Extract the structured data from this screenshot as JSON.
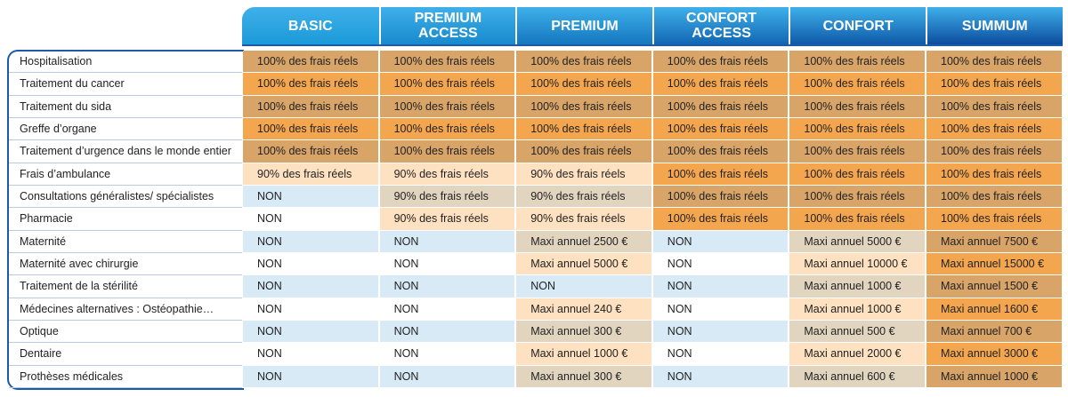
{
  "table": {
    "columns": [
      "BASIC",
      "PREMIUM ACCESS",
      "PREMIUM",
      "CONFORT ACCESS",
      "CONFORT",
      "SUMMUM"
    ],
    "rows": [
      {
        "label": "Hospitalisation",
        "cells": [
          "100% des frais réels",
          "100% des frais réels",
          "100% des frais réels",
          "100% des frais réels",
          "100% des frais réels",
          "100% des frais réels"
        ]
      },
      {
        "label": "Traitement du cancer",
        "cells": [
          "100% des frais réels",
          "100% des frais réels",
          "100% des frais réels",
          "100% des frais réels",
          "100% des frais réels",
          "100% des frais réels"
        ]
      },
      {
        "label": "Traitement du sida",
        "cells": [
          "100% des frais réels",
          "100% des frais réels",
          "100% des frais réels",
          "100% des frais réels",
          "100% des frais réels",
          "100% des frais réels"
        ]
      },
      {
        "label": "Greffe d’organe",
        "cells": [
          "100% des frais réels",
          "100% des frais réels",
          "100% des frais réels",
          "100% des frais réels",
          "100% des frais réels",
          "100% des frais réels"
        ]
      },
      {
        "label": "Traitement d’urgence dans le monde entier",
        "cells": [
          "100% des frais réels",
          "100% des frais réels",
          "100% des frais réels",
          "100% des frais réels",
          "100% des frais réels",
          "100% des frais réels"
        ]
      },
      {
        "label": "Frais d’ambulance",
        "cells": [
          "90% des frais réels",
          "90% des frais réels",
          "90% des frais réels",
          "100% des frais réels",
          "100% des frais réels",
          "100% des frais réels"
        ]
      },
      {
        "label": "Consultations généralistes/ spécialistes",
        "cells": [
          "NON",
          "90% des frais réels",
          "90% des frais réels",
          "100% des frais réels",
          "100% des frais réels",
          "100% des frais réels"
        ]
      },
      {
        "label": "Pharmacie",
        "cells": [
          "NON",
          "90% des frais réels",
          "90% des frais réels",
          "100% des frais réels",
          "100% des frais réels",
          "100% des frais réels"
        ]
      },
      {
        "label": "Maternité",
        "cells": [
          "NON",
          "NON",
          "Maxi annuel 2500 €",
          "NON",
          "Maxi annuel 5000 €",
          "Maxi annuel 7500 €"
        ]
      },
      {
        "label": "Maternité avec chirurgie",
        "cells": [
          "NON",
          "NON",
          "Maxi annuel 5000 €",
          "NON",
          "Maxi annuel 10000 €",
          "Maxi annuel 15000 €"
        ]
      },
      {
        "label": "Traitement de la stérilité",
        "cells": [
          "NON",
          "NON",
          "NON",
          "NON",
          "Maxi annuel 1000 €",
          "Maxi annuel 1500 €"
        ]
      },
      {
        "label": "Médecines alternatives : Ostéopathie…",
        "cells": [
          "NON",
          "NON",
          "Maxi annuel 240 €",
          "NON",
          "Maxi annuel 1000 €",
          "Maxi annuel 1600 €"
        ]
      },
      {
        "label": "Optique",
        "cells": [
          "NON",
          "NON",
          "Maxi annuel 300 €",
          "NON",
          "Maxi annuel 500 €",
          "Maxi annuel 700 €"
        ]
      },
      {
        "label": "Dentaire",
        "cells": [
          "NON",
          "NON",
          "Maxi annuel 1000 €",
          "NON",
          "Maxi annuel 2000 €",
          "Maxi annuel 3000 €"
        ]
      },
      {
        "label": "Prothèses médicales",
        "cells": [
          "NON",
          "NON",
          "Maxi annuel 300 €",
          "NON",
          "Maxi annuel 600 €",
          "Maxi annuel 1000 €"
        ]
      }
    ]
  }
}
